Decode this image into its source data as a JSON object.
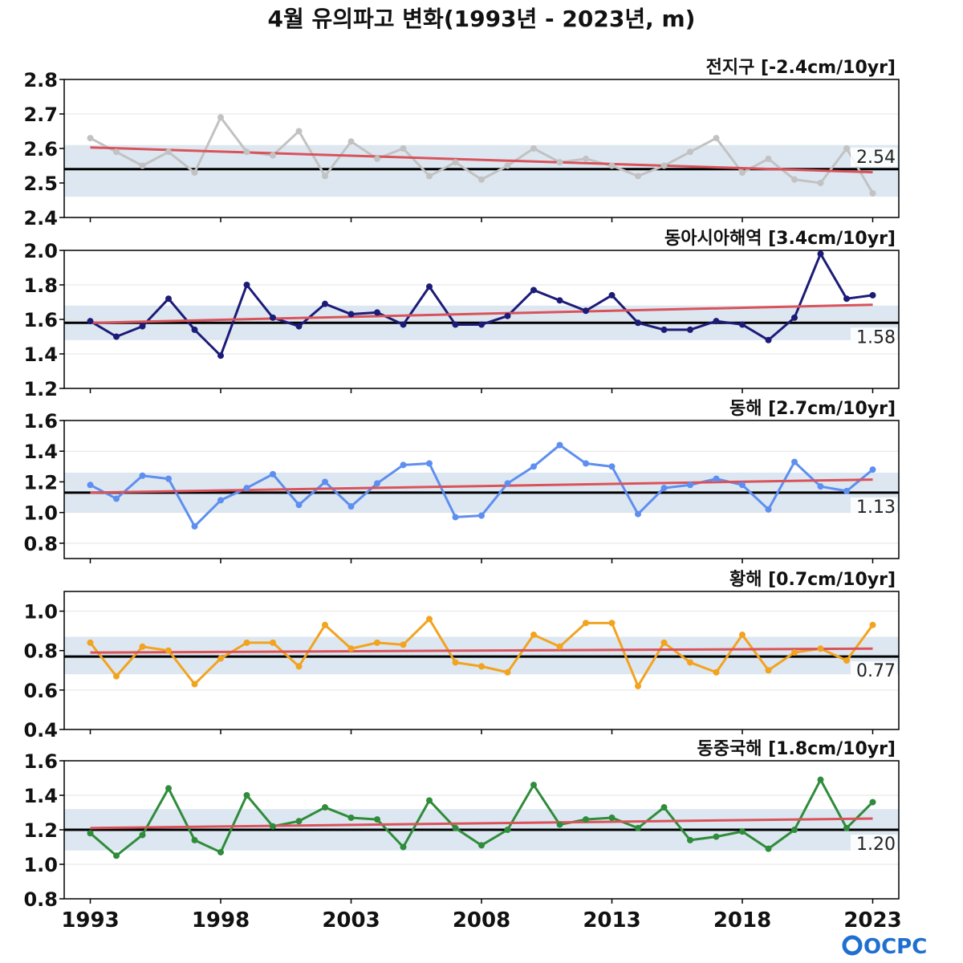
{
  "title": "4월 유의파고 변화(1993년 - 2023년, m)",
  "logo": "OCPC",
  "colors": {
    "trend": "#d9535b",
    "mean": "#000000",
    "band": "#dde7f1",
    "grid": "#e3e3e3"
  },
  "x_ticks": [
    1993,
    1998,
    2003,
    2008,
    2013,
    2018,
    2023
  ],
  "chart_data": [
    {
      "type": "line",
      "title": "전지구 [-2.4cm/10yr]",
      "color": "#c2c2c2",
      "ylim": [
        2.4,
        2.8
      ],
      "yticks": [
        "2.4",
        "2.5",
        "2.6",
        "2.7",
        "2.8"
      ],
      "mean": 2.54,
      "mean_label": "2.54",
      "band": [
        2.46,
        2.61
      ],
      "trend": [
        2.603,
        2.531
      ],
      "x": [
        1993,
        1994,
        1995,
        1996,
        1997,
        1998,
        1999,
        2000,
        2001,
        2002,
        2003,
        2004,
        2005,
        2006,
        2007,
        2008,
        2009,
        2010,
        2011,
        2012,
        2013,
        2014,
        2015,
        2016,
        2017,
        2018,
        2019,
        2020,
        2021,
        2022,
        2023
      ],
      "values": [
        2.63,
        2.59,
        2.55,
        2.59,
        2.53,
        2.69,
        2.59,
        2.58,
        2.65,
        2.52,
        2.62,
        2.57,
        2.6,
        2.52,
        2.56,
        2.51,
        2.55,
        2.6,
        2.56,
        2.57,
        2.55,
        2.52,
        2.55,
        2.59,
        2.63,
        2.53,
        2.57,
        2.51,
        2.5,
        2.6,
        2.47
      ]
    },
    {
      "type": "line",
      "title": "동아시아해역 [3.4cm/10yr]",
      "color": "#1c1c78",
      "ylim": [
        1.2,
        2.0
      ],
      "yticks": [
        "1.2",
        "1.4",
        "1.6",
        "1.8",
        "2.0"
      ],
      "mean": 1.58,
      "mean_label": "1.58",
      "band": [
        1.48,
        1.68
      ],
      "trend": [
        1.58,
        1.685
      ],
      "x": [
        1993,
        1994,
        1995,
        1996,
        1997,
        1998,
        1999,
        2000,
        2001,
        2002,
        2003,
        2004,
        2005,
        2006,
        2007,
        2008,
        2009,
        2010,
        2011,
        2012,
        2013,
        2014,
        2015,
        2016,
        2017,
        2018,
        2019,
        2020,
        2021,
        2022,
        2023
      ],
      "values": [
        1.59,
        1.5,
        1.56,
        1.72,
        1.54,
        1.39,
        1.8,
        1.61,
        1.56,
        1.69,
        1.63,
        1.64,
        1.57,
        1.79,
        1.57,
        1.57,
        1.62,
        1.77,
        1.71,
        1.65,
        1.74,
        1.58,
        1.54,
        1.54,
        1.59,
        1.57,
        1.48,
        1.61,
        1.98,
        1.72,
        1.74
      ]
    },
    {
      "type": "line",
      "title": "동해 [2.7cm/10yr]",
      "color": "#5e8ff0",
      "ylim": [
        0.7,
        1.6
      ],
      "yticks": [
        "0.8",
        "1.0",
        "1.2",
        "1.4",
        "1.6"
      ],
      "mean": 1.13,
      "mean_label": "1.13",
      "band": [
        1.0,
        1.26
      ],
      "trend": [
        1.13,
        1.215
      ],
      "x": [
        1993,
        1994,
        1995,
        1996,
        1997,
        1998,
        1999,
        2000,
        2001,
        2002,
        2003,
        2004,
        2005,
        2006,
        2007,
        2008,
        2009,
        2010,
        2011,
        2012,
        2013,
        2014,
        2015,
        2016,
        2017,
        2018,
        2019,
        2020,
        2021,
        2022,
        2023
      ],
      "values": [
        1.18,
        1.09,
        1.24,
        1.22,
        0.91,
        1.08,
        1.16,
        1.25,
        1.05,
        1.2,
        1.04,
        1.19,
        1.31,
        1.32,
        0.97,
        0.98,
        1.19,
        1.3,
        1.44,
        1.32,
        1.3,
        0.99,
        1.16,
        1.18,
        1.22,
        1.18,
        1.02,
        1.33,
        1.17,
        1.14,
        1.28
      ]
    },
    {
      "type": "line",
      "title": "황해 [0.7cm/10yr]",
      "color": "#f2a31f",
      "ylim": [
        0.4,
        1.1
      ],
      "yticks": [
        "0.4",
        "0.6",
        "0.8",
        "1.0"
      ],
      "mean": 0.77,
      "mean_label": "0.77",
      "band": [
        0.68,
        0.87
      ],
      "trend": [
        0.79,
        0.81
      ],
      "x": [
        1993,
        1994,
        1995,
        1996,
        1997,
        1998,
        1999,
        2000,
        2001,
        2002,
        2003,
        2004,
        2005,
        2006,
        2007,
        2008,
        2009,
        2010,
        2011,
        2012,
        2013,
        2014,
        2015,
        2016,
        2017,
        2018,
        2019,
        2020,
        2021,
        2022,
        2023
      ],
      "values": [
        0.84,
        0.67,
        0.82,
        0.8,
        0.63,
        0.76,
        0.84,
        0.84,
        0.72,
        0.93,
        0.81,
        0.84,
        0.83,
        0.96,
        0.74,
        0.72,
        0.69,
        0.88,
        0.82,
        0.94,
        0.94,
        0.62,
        0.84,
        0.74,
        0.69,
        0.88,
        0.7,
        0.79,
        0.81,
        0.75,
        0.93
      ]
    },
    {
      "type": "line",
      "title": "동중국해 [1.8cm/10yr]",
      "color": "#2f8c3a",
      "ylim": [
        0.8,
        1.6
      ],
      "yticks": [
        "0.8",
        "1.0",
        "1.2",
        "1.4",
        "1.6"
      ],
      "mean": 1.2,
      "mean_label": "1.20",
      "band": [
        1.08,
        1.32
      ],
      "trend": [
        1.21,
        1.265
      ],
      "x": [
        1993,
        1994,
        1995,
        1996,
        1997,
        1998,
        1999,
        2000,
        2001,
        2002,
        2003,
        2004,
        2005,
        2006,
        2007,
        2008,
        2009,
        2010,
        2011,
        2012,
        2013,
        2014,
        2015,
        2016,
        2017,
        2018,
        2019,
        2020,
        2021,
        2022,
        2023
      ],
      "values": [
        1.18,
        1.05,
        1.17,
        1.44,
        1.14,
        1.07,
        1.4,
        1.22,
        1.25,
        1.33,
        1.27,
        1.26,
        1.1,
        1.37,
        1.21,
        1.11,
        1.2,
        1.46,
        1.23,
        1.26,
        1.27,
        1.21,
        1.33,
        1.14,
        1.16,
        1.19,
        1.09,
        1.2,
        1.49,
        1.21,
        1.36
      ]
    }
  ]
}
